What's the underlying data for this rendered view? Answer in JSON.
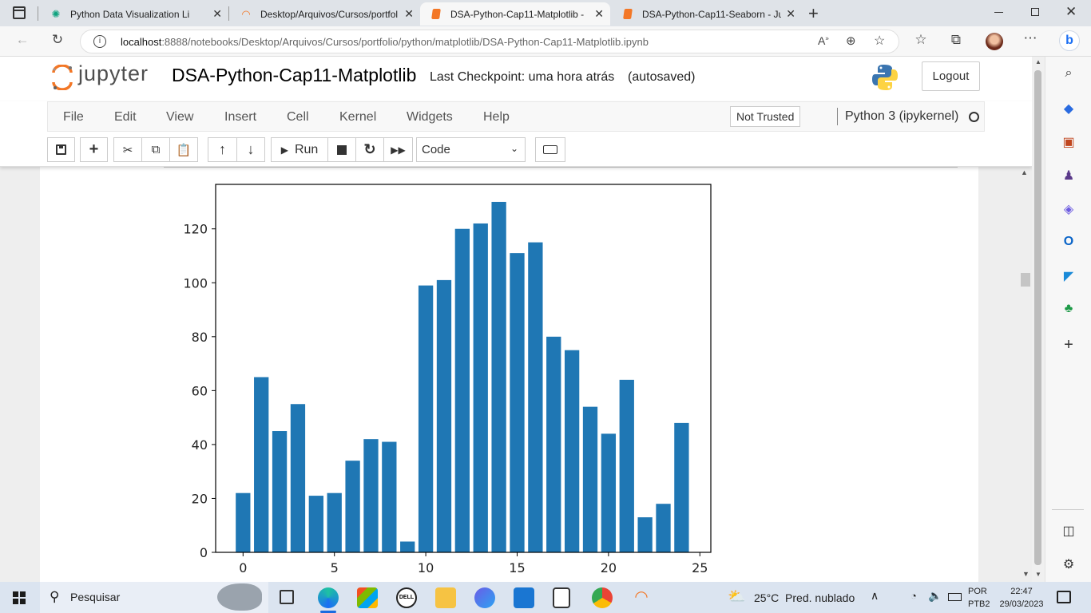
{
  "browser": {
    "tabs": [
      {
        "label": "Python Data Visualization Library",
        "icon": "chatgpt-icon",
        "active": false
      },
      {
        "label": "Desktop/Arquivos/Cursos/portfolio",
        "icon": "jupyter-icon",
        "active": false
      },
      {
        "label": "DSA-Python-Cap11-Matplotlib -",
        "icon": "notebook-icon",
        "active": true
      },
      {
        "label": "DSA-Python-Cap11-Seaborn - Ju",
        "icon": "notebook-icon",
        "active": false
      }
    ],
    "url_host": "localhost",
    "url_path": ":8888/notebooks/Desktop/Arquivos/Cursos/portfolio/python/matplotlib/DSA-Python-Cap11-Matplotlib.ipynb"
  },
  "jupyter": {
    "logo_text": "jupyter",
    "notebook_title": "DSA-Python-Cap11-Matplotlib",
    "checkpoint": "Last Checkpoint: uma hora atrás",
    "autosaved": "(autosaved)",
    "logout_label": "Logout",
    "menu": [
      "File",
      "Edit",
      "View",
      "Insert",
      "Cell",
      "Kernel",
      "Widgets",
      "Help"
    ],
    "not_trusted": "Not Trusted",
    "kernel_name": "Python 3 (ipykernel)",
    "toolbar": {
      "run_label": "Run",
      "cell_type": "Code"
    }
  },
  "chart_data": {
    "type": "bar",
    "x": [
      0,
      1,
      2,
      3,
      4,
      5,
      6,
      7,
      8,
      9,
      10,
      11,
      12,
      13,
      14,
      15,
      16,
      17,
      18,
      19,
      20,
      21,
      22,
      23,
      24
    ],
    "values": [
      22,
      65,
      45,
      55,
      21,
      22,
      34,
      42,
      41,
      4,
      99,
      101,
      120,
      122,
      130,
      111,
      115,
      80,
      75,
      54,
      44,
      64,
      13,
      18,
      48
    ],
    "color": "#1f77b4",
    "xlim": [
      -1.5,
      25.6
    ],
    "ylim": [
      0,
      136.5
    ],
    "xticks": [
      0,
      5,
      10,
      15,
      20,
      25
    ],
    "yticks": [
      0,
      20,
      40,
      60,
      80,
      100,
      120
    ],
    "grid": false
  },
  "taskbar": {
    "search_placeholder": "Pesquisar",
    "weather": "25°C  Pred. nublado",
    "lang_top": "POR",
    "lang_bottom": "PTB2",
    "time": "22:47",
    "date": "29/03/2023"
  }
}
